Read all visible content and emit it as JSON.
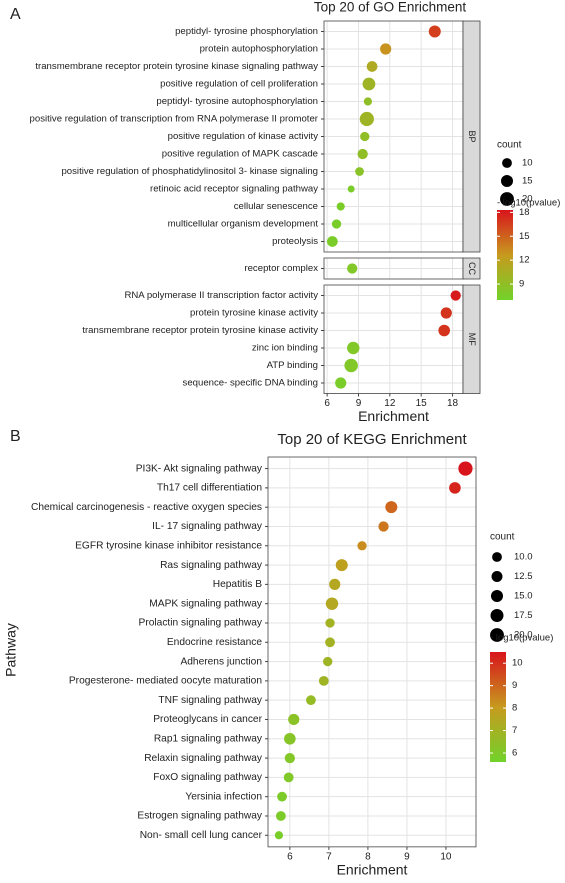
{
  "chart_data": [
    {
      "type": "bubble",
      "panel_label": "A",
      "title": "Top 20 of GO Enrichment",
      "x_label": "Enrichment",
      "xlim": [
        5.7,
        19
      ],
      "xticks": [
        6,
        9,
        12,
        15,
        18
      ],
      "grid": true,
      "facets": [
        {
          "name": "BP",
          "categories": [
            "peptidyl- tyrosine phosphorylation",
            "protein autophosphorylation",
            "transmembrane receptor protein tyrosine kinase signaling pathway",
            "positive regulation of cell proliferation",
            "peptidyl- tyrosine autophosphorylation",
            "positive regulation of transcription from RNA polymerase II promoter",
            "positive regulation of kinase activity",
            "positive regulation of MAPK cascade",
            "positive regulation of phosphatidylinositol 3- kinase signaling",
            "retinoic acid receptor signaling pathway",
            "cellular senescence",
            "multicellular organism development",
            "proteolysis"
          ],
          "values": [
            16.3,
            11.6,
            10.3,
            10.0,
            9.9,
            9.8,
            9.6,
            9.4,
            9.1,
            8.3,
            7.3,
            6.9,
            6.5
          ],
          "count": [
            15,
            13,
            12,
            17,
            7,
            21,
            9,
            11,
            8,
            5,
            7,
            9,
            12
          ],
          "log10p": [
            16.5,
            13,
            11,
            10,
            9,
            10,
            9,
            9,
            8.5,
            7.5,
            7.5,
            7.5,
            7.5
          ]
        },
        {
          "name": "CC",
          "categories": [
            "receptor complex"
          ],
          "values": [
            8.4
          ],
          "count": [
            11
          ],
          "log10p": [
            8
          ]
        },
        {
          "name": "MF",
          "categories": [
            "RNA polymerase II transcription factor activity",
            "protein tyrosine kinase activity",
            "transmembrane receptor protein tyrosine kinase activity",
            "zinc ion binding",
            "ATP binding",
            "sequence- specific DNA binding"
          ],
          "values": [
            18.3,
            17.4,
            17.2,
            8.5,
            8.3,
            7.3
          ],
          "count": [
            11,
            13,
            14,
            16,
            19,
            13
          ],
          "log10p": [
            18,
            17,
            17,
            8,
            8,
            7.5
          ]
        }
      ],
      "size_legend": {
        "title": "count",
        "values": [
          10,
          15,
          20
        ]
      },
      "color_legend": {
        "title": "- log10(pvalue)",
        "lim": [
          7,
          18.3
        ],
        "ticks": [
          9,
          12,
          15,
          18
        ],
        "colors": [
          "#72d22a",
          "#c79a1e",
          "#d8141c"
        ]
      }
    },
    {
      "type": "bubble",
      "panel_label": "B",
      "title": "Top 20 of KEGG Enrichment",
      "x_label": "Enrichment",
      "y_label": "Pathway",
      "xlim": [
        5.44,
        10.77
      ],
      "xticks": [
        6,
        7,
        8,
        9,
        10
      ],
      "grid": true,
      "categories": [
        "PI3K- Akt signaling pathway",
        "Th17 cell differentiation",
        "Chemical carcinogenesis -  reactive oxygen species",
        "IL- 17 signaling pathway",
        "EGFR tyrosine kinase inhibitor resistance",
        "Ras signaling pathway",
        "Hepatitis B",
        "MAPK signaling pathway",
        "Prolactin signaling pathway",
        "Endocrine resistance",
        "Adherens junction",
        "Progesterone- mediated oocyte maturation",
        "TNF signaling pathway",
        "Proteoglycans in cancer",
        "Rap1 signaling pathway",
        "Relaxin signaling pathway",
        "FoxO signaling pathway",
        "Yersinia infection",
        "Estrogen signaling pathway",
        "Non- small cell lung cancer"
      ],
      "values": [
        10.5,
        10.23,
        8.6,
        8.4,
        7.85,
        7.33,
        7.15,
        7.08,
        7.03,
        7.03,
        6.97,
        6.87,
        6.54,
        6.1,
        6.0,
        6.0,
        5.97,
        5.8,
        5.77,
        5.72
      ],
      "count": [
        21,
        14,
        15,
        11,
        9,
        15,
        13,
        16,
        9,
        10,
        9,
        10,
        10,
        13,
        14,
        11,
        10,
        10,
        10,
        7
      ],
      "log10p": [
        10.5,
        10.2,
        9,
        8.7,
        8.3,
        7.8,
        7.5,
        7.5,
        7,
        7,
        6.9,
        6.9,
        6.6,
        6.3,
        6.2,
        6.1,
        6.0,
        5.9,
        5.9,
        5.8
      ],
      "size_legend": {
        "title": "count",
        "values": [
          {
            "value": 10,
            "label": "10.0"
          },
          {
            "value": 12.5,
            "label": "12.5"
          },
          {
            "value": 15,
            "label": "15.0"
          },
          {
            "value": 17.5,
            "label": "17.5"
          },
          {
            "value": 20,
            "label": "20.0"
          }
        ]
      },
      "color_legend": {
        "title": "- log10(pvalue)",
        "lim": [
          5.6,
          10.5
        ],
        "ticks": [
          6,
          7,
          8,
          9,
          10
        ],
        "colors": [
          "#72d22a",
          "#c79a1e",
          "#d8141c"
        ]
      }
    }
  ]
}
